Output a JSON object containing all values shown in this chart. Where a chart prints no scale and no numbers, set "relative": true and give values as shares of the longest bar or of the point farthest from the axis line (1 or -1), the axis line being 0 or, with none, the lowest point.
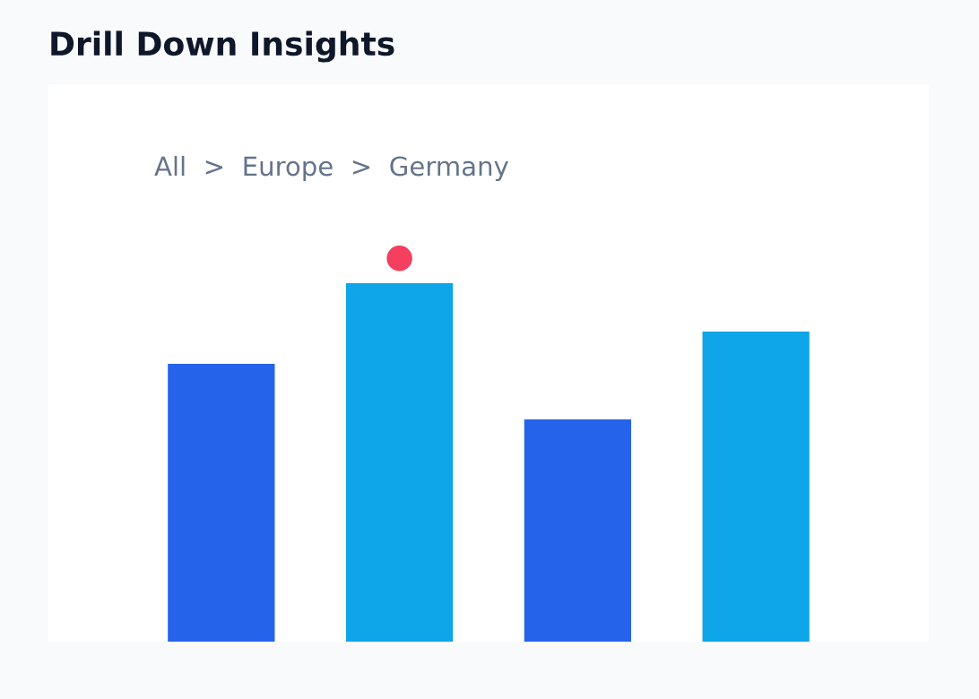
{
  "chart_data": {
    "type": "bar",
    "title": "Drill Down Insights",
    "subtitle": "All  >  Europe  >  Germany",
    "categories": [
      null,
      null,
      null,
      null
    ],
    "values": [
      0.775,
      1,
      0.62,
      0.865
    ],
    "colors": [
      "#2563eb",
      "#0ea5e9",
      "#2563eb",
      "#0ea5e9"
    ],
    "relative": true,
    "grid": false,
    "legend": false
  }
}
